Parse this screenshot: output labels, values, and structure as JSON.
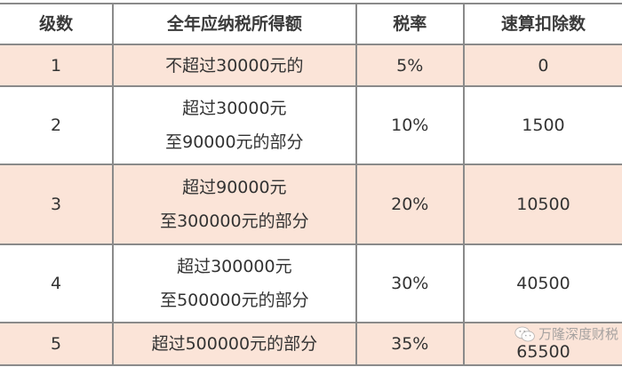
{
  "table": {
    "headers": [
      "级数",
      "全年应纳税所得额",
      "税率",
      "速算扣除数"
    ],
    "rows": [
      {
        "level": "1",
        "income_line1": "不超过30000元的",
        "income_line2": "",
        "rate": "5%",
        "deduction": "0",
        "highlight": true
      },
      {
        "level": "2",
        "income_line1": "超过30000元",
        "income_line2": "至90000元的部分",
        "rate": "10%",
        "deduction": "1500",
        "highlight": false
      },
      {
        "level": "3",
        "income_line1": "超过90000元",
        "income_line2": "至300000元的部分",
        "rate": "20%",
        "deduction": "10500",
        "highlight": true
      },
      {
        "level": "4",
        "income_line1": "超过300000元",
        "income_line2": "至500000元的部分",
        "rate": "30%",
        "deduction": "40500",
        "highlight": false
      },
      {
        "level": "5",
        "income_line1": "超过500000元的部分",
        "income_line2": "",
        "rate": "35%",
        "deduction": "65500",
        "highlight": true
      }
    ]
  },
  "watermark": {
    "text": "万隆深度财税",
    "icon": "wechat-icon"
  },
  "colors": {
    "highlight_row": "#fbe4d8",
    "border": "#8a8a8a"
  }
}
